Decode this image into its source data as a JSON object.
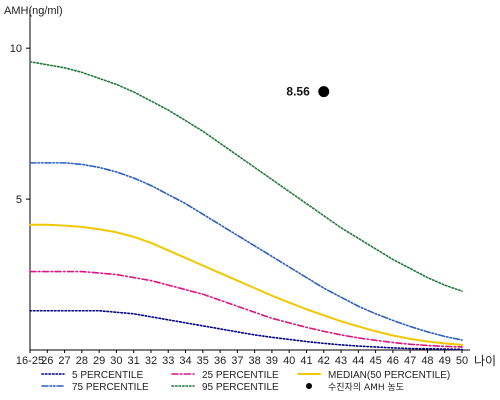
{
  "chart_data": {
    "type": "line",
    "ylabel": "AMH(ng/ml)",
    "xlabel": "나이",
    "ylim": [
      0,
      11
    ],
    "y_ticks": [
      5,
      10
    ],
    "categories": [
      "16-25",
      "26",
      "27",
      "28",
      "29",
      "30",
      "31",
      "32",
      "33",
      "34",
      "35",
      "36",
      "37",
      "38",
      "39",
      "40",
      "41",
      "42",
      "43",
      "44",
      "45",
      "46",
      "47",
      "48",
      "49",
      "50"
    ],
    "series": [
      {
        "name": "5 PERCENTILE",
        "color": "#000080",
        "style": "dotted",
        "values": [
          1.3,
          1.3,
          1.3,
          1.3,
          1.3,
          1.25,
          1.2,
          1.1,
          1.0,
          0.9,
          0.8,
          0.7,
          0.6,
          0.5,
          0.42,
          0.35,
          0.28,
          0.22,
          0.17,
          0.13,
          0.1,
          0.07,
          0.05,
          0.04,
          0.03,
          0.02
        ]
      },
      {
        "name": "25 PERCENTILE",
        "color": "#e0147f",
        "style": "dashdot",
        "values": [
          2.6,
          2.6,
          2.6,
          2.6,
          2.55,
          2.5,
          2.4,
          2.3,
          2.15,
          2.0,
          1.85,
          1.65,
          1.45,
          1.25,
          1.05,
          0.9,
          0.75,
          0.62,
          0.5,
          0.4,
          0.32,
          0.25,
          0.19,
          0.15,
          0.12,
          0.1
        ]
      },
      {
        "name": "MEDIAN(50 PERCENTILE)",
        "color": "#f0c800",
        "style": "solid",
        "values": [
          4.15,
          4.15,
          4.12,
          4.08,
          4.0,
          3.9,
          3.75,
          3.55,
          3.3,
          3.05,
          2.8,
          2.55,
          2.3,
          2.05,
          1.8,
          1.57,
          1.35,
          1.15,
          0.95,
          0.78,
          0.62,
          0.48,
          0.37,
          0.28,
          0.22,
          0.17
        ]
      },
      {
        "name": "75 PERCENTILE",
        "color": "#2a5fbf",
        "style": "dashdotdot",
        "values": [
          6.2,
          6.2,
          6.2,
          6.15,
          6.05,
          5.9,
          5.7,
          5.45,
          5.15,
          4.85,
          4.5,
          4.15,
          3.8,
          3.45,
          3.1,
          2.75,
          2.4,
          2.05,
          1.75,
          1.45,
          1.2,
          0.98,
          0.78,
          0.6,
          0.45,
          0.33
        ]
      },
      {
        "name": "95 PERCENTILE",
        "color": "#1f7a3a",
        "style": "dotted",
        "values": [
          9.55,
          9.45,
          9.35,
          9.2,
          9.0,
          8.8,
          8.55,
          8.25,
          7.95,
          7.6,
          7.25,
          6.85,
          6.45,
          6.05,
          5.65,
          5.25,
          4.85,
          4.45,
          4.05,
          3.7,
          3.35,
          3.0,
          2.7,
          2.4,
          2.15,
          1.95
        ]
      }
    ],
    "highlight": {
      "name": "수진자의 AMH 농도",
      "category": "42",
      "value": 8.56,
      "label": "8.56",
      "color": "#000000"
    },
    "legend_placement": "bottom",
    "grid": false
  }
}
